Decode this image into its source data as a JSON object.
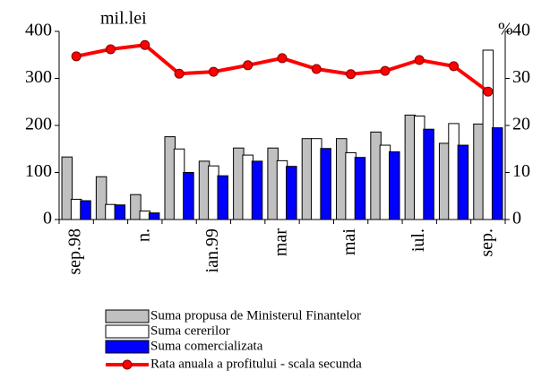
{
  "chart_data": {
    "type": "bar_line",
    "y_label": "mil.lei",
    "y2_label": "%",
    "categories": [
      "sep.98",
      null,
      "n.",
      null,
      "ian.99",
      null,
      "mar",
      null,
      "mai",
      null,
      "iul.",
      null,
      "sep."
    ],
    "series": [
      {
        "name": "Suma propusa de Ministerul Finantelor",
        "color": "#c0c0c0",
        "values": [
          133,
          91,
          53,
          176,
          124,
          152,
          152,
          172,
          172,
          186,
          222,
          162,
          203
        ]
      },
      {
        "name": "Suma cererilor",
        "color": "#ffffff",
        "values": [
          43,
          32,
          18,
          150,
          114,
          137,
          125,
          172,
          142,
          158,
          220,
          204,
          360
        ]
      },
      {
        "name": " Suma comercializata",
        "color": "#0000ff",
        "values": [
          40,
          31,
          14,
          100,
          93,
          124,
          113,
          151,
          132,
          144,
          192,
          158,
          195
        ]
      },
      {
        "name": "Rata anuala a profitului - scala secunda",
        "color": "#ff0000",
        "axis": "y2",
        "type": "line",
        "values": [
          34.7,
          36.2,
          37.1,
          31,
          31.4,
          32.8,
          34.3,
          32,
          30.9,
          31.6,
          33.9,
          32.6,
          27.2
        ]
      }
    ],
    "ylim": [
      0,
      400
    ],
    "yticks": [
      0,
      100,
      200,
      300,
      400
    ],
    "y2lim": [
      0,
      40
    ],
    "y2ticks": [
      0,
      10,
      20,
      30,
      40
    ]
  }
}
